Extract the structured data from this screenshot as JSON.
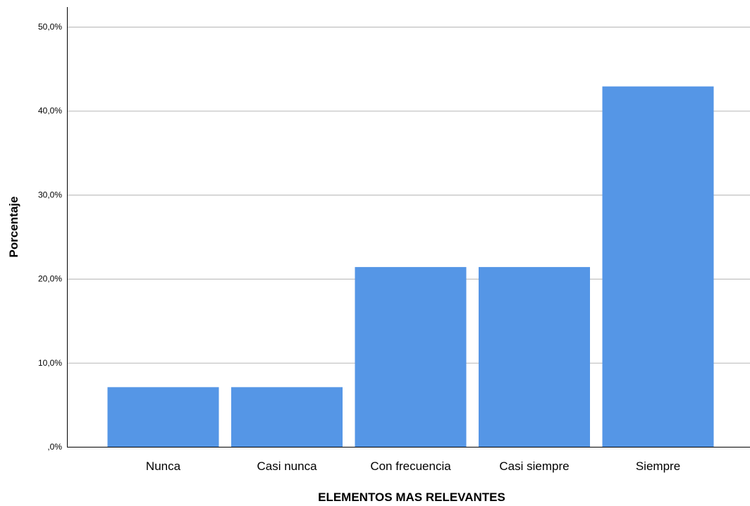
{
  "chart_data": {
    "type": "bar",
    "xlabel": "ELEMENTOS MAS RELEVANTES",
    "ylabel": "Porcentaje",
    "categories": [
      "Nunca",
      "Casi nunca",
      "Con frecuencia",
      "Casi siempre",
      "Siempre"
    ],
    "values": [
      7.1,
      7.1,
      21.4,
      21.4,
      42.9
    ],
    "ylim": [
      0,
      50
    ],
    "yticks": [
      0,
      10,
      20,
      30,
      40,
      50
    ],
    "ytick_labels": [
      ",0%",
      "10,0%",
      "20,0%",
      "30,0%",
      "40,0%",
      "50,0%"
    ],
    "grid": true,
    "legend": "none",
    "colors": {
      "bar": "#5596e6",
      "grid": "#bfbfbf",
      "axis": "#000000"
    }
  }
}
